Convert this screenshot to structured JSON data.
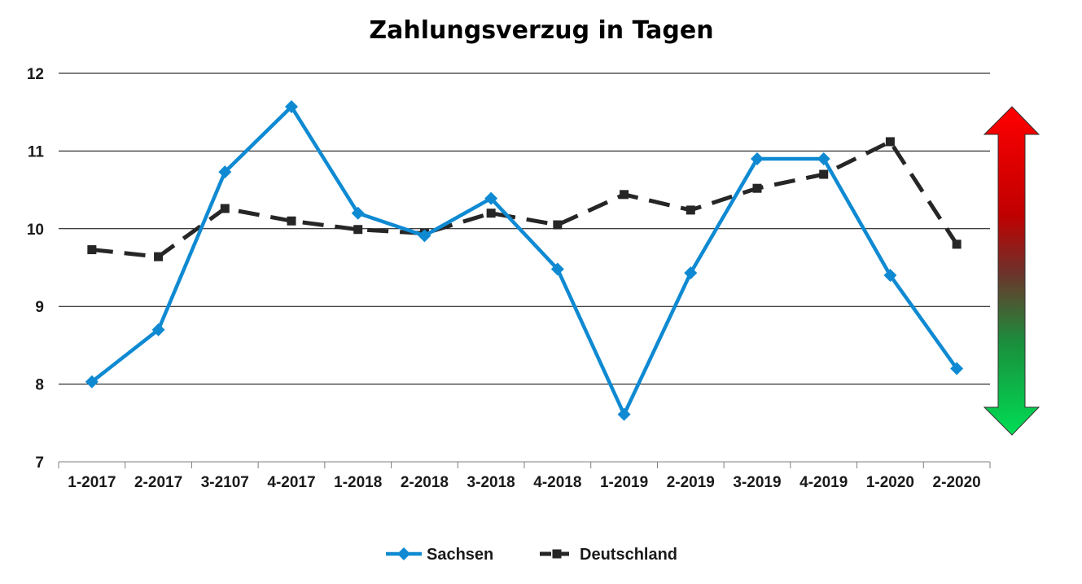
{
  "chart_data": {
    "type": "line",
    "title": "Zahlungsverzug in Tagen",
    "xlabel": "",
    "ylabel": "",
    "categories": [
      "1-2017",
      "2-2017",
      "3-2107",
      "4-2017",
      "1-2018",
      "2-2018",
      "3-2018",
      "4-2018",
      "1-2019",
      "2-2019",
      "3-2019",
      "4-2019",
      "1-2020",
      "2-2020"
    ],
    "ylim": [
      7,
      12
    ],
    "yticks": [
      7,
      8,
      9,
      10,
      11,
      12
    ],
    "grid": true,
    "legend_position": "bottom",
    "series": [
      {
        "name": "Sachsen",
        "color": "#0f8ad2",
        "marker": "diamond",
        "dash": "solid",
        "values": [
          8.03,
          8.7,
          10.73,
          11.57,
          10.2,
          9.91,
          10.39,
          9.48,
          7.61,
          9.43,
          10.9,
          10.9,
          9.4,
          8.2
        ]
      },
      {
        "name": "Deutschland",
        "color": "#262626",
        "marker": "square",
        "dash": "dashed",
        "values": [
          9.73,
          9.64,
          10.26,
          10.1,
          9.99,
          9.94,
          10.2,
          10.05,
          10.44,
          10.24,
          10.52,
          10.7,
          11.12,
          9.8
        ]
      }
    ],
    "annotation": {
      "type": "double-arrow",
      "colors": [
        "#ff0000",
        "#c00000",
        "#70302a",
        "#1a8f3c",
        "#00dd55"
      ]
    }
  }
}
